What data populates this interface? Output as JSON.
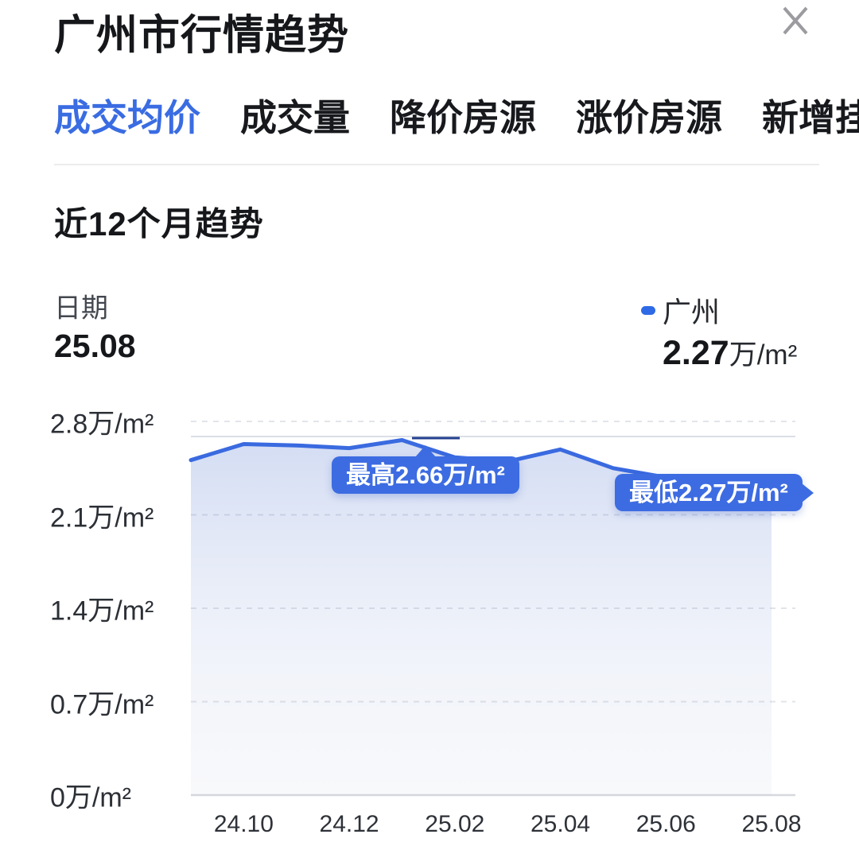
{
  "header": {
    "title": "广州市行情趋势"
  },
  "tabs": [
    {
      "label": "成交均价",
      "active": true
    },
    {
      "label": "成交量",
      "active": false
    },
    {
      "label": "降价房源",
      "active": false
    },
    {
      "label": "涨价房源",
      "active": false
    },
    {
      "label": "新增挂牌",
      "active": false
    }
  ],
  "section": {
    "title": "近12个月趋势"
  },
  "readout": {
    "date_label": "日期",
    "date_value": "25.08"
  },
  "legend": {
    "name": "广州",
    "value_number": "2.27",
    "value_unit": "万/m²"
  },
  "colors": {
    "accent_blue": "#3a6ce2",
    "line_blue": "#3a6ae0",
    "tooltip_bg": "#3d6ce2",
    "grid_dash": "#e2e4e9",
    "baseline": "#d5d8de",
    "cap_line": "#dbdfe6",
    "max_marker_segment": "#24418f"
  },
  "chart_data": {
    "type": "area",
    "title": "近12个月趋势",
    "x": [
      "24.09",
      "24.10",
      "24.11",
      "24.12",
      "25.01",
      "25.02",
      "25.03",
      "25.04",
      "25.05",
      "25.06",
      "25.07",
      "25.08"
    ],
    "series": [
      {
        "name": "广州",
        "values": [
          2.51,
          2.63,
          2.62,
          2.6,
          2.66,
          2.53,
          2.5,
          2.59,
          2.45,
          2.38,
          2.31,
          2.27
        ]
      }
    ],
    "unit": "万/m²",
    "ylim": [
      0,
      2.8
    ],
    "y_ticks": [
      {
        "label": "2.8万/m²",
        "value": 2.8
      },
      {
        "label": "2.1万/m²",
        "value": 2.1
      },
      {
        "label": "1.4万/m²",
        "value": 1.4
      },
      {
        "label": "0.7万/m²",
        "value": 0.7
      },
      {
        "label": "0万/m²",
        "value": 0
      }
    ],
    "x_tick_labels": [
      "24.10",
      "24.12",
      "25.02",
      "25.04",
      "25.06",
      "25.08"
    ],
    "grid": "horizontal-dashed",
    "legend_position": "top-right",
    "annotations": {
      "max": {
        "label": "最高2.66万/m²",
        "x": "25.01",
        "value": 2.66
      },
      "min": {
        "label": "最低2.27万/m²",
        "x": "25.08",
        "value": 2.27
      }
    }
  }
}
